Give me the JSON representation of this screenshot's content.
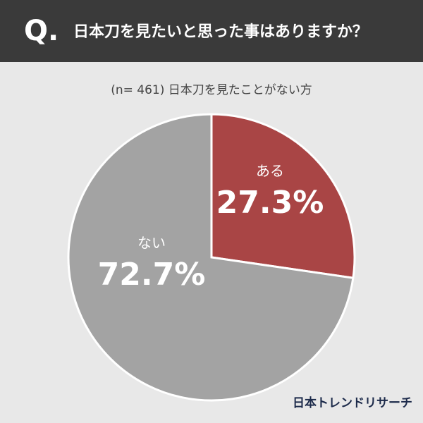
{
  "header_label": "Q.",
  "chart_data": {
    "type": "pie",
    "title": "日本刀を見たいと思った事はありますか？",
    "subtitle": "(n= 461) 日本刀を見たことがない方",
    "categories": [
      "ある",
      "ない"
    ],
    "values": [
      27.3,
      72.7
    ],
    "value_labels": [
      "27.3%",
      "72.7%"
    ],
    "colors": [
      "#a94545",
      "#a3a3a3"
    ]
  },
  "brand": "日本トレンドリサーチ"
}
